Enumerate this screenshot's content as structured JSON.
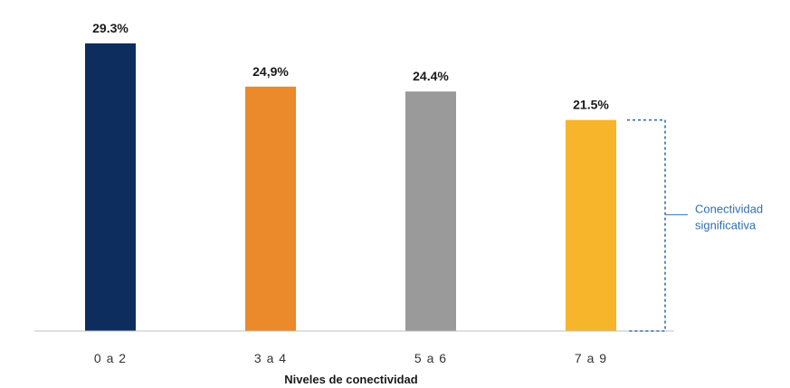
{
  "chart_data": {
    "type": "bar",
    "categories": [
      "0 a 2",
      "3 a 4",
      "5 a 6",
      "7 a 9"
    ],
    "values": [
      29.3,
      24.9,
      24.4,
      21.5
    ],
    "value_labels": [
      "29.3%",
      "24,9%",
      "24.4%",
      "21.5%"
    ],
    "colors": [
      "#0c2d5e",
      "#ea8a2a",
      "#9a9a9a",
      "#f7b52b"
    ],
    "xlabel": "Niveles de conectividad",
    "ylabel": "",
    "ylim": [
      0,
      30
    ],
    "grid": false,
    "annotation": {
      "lines": [
        "Conectividad",
        "significativa"
      ],
      "category": "7 a 9",
      "color": "#2f6fb0"
    }
  }
}
